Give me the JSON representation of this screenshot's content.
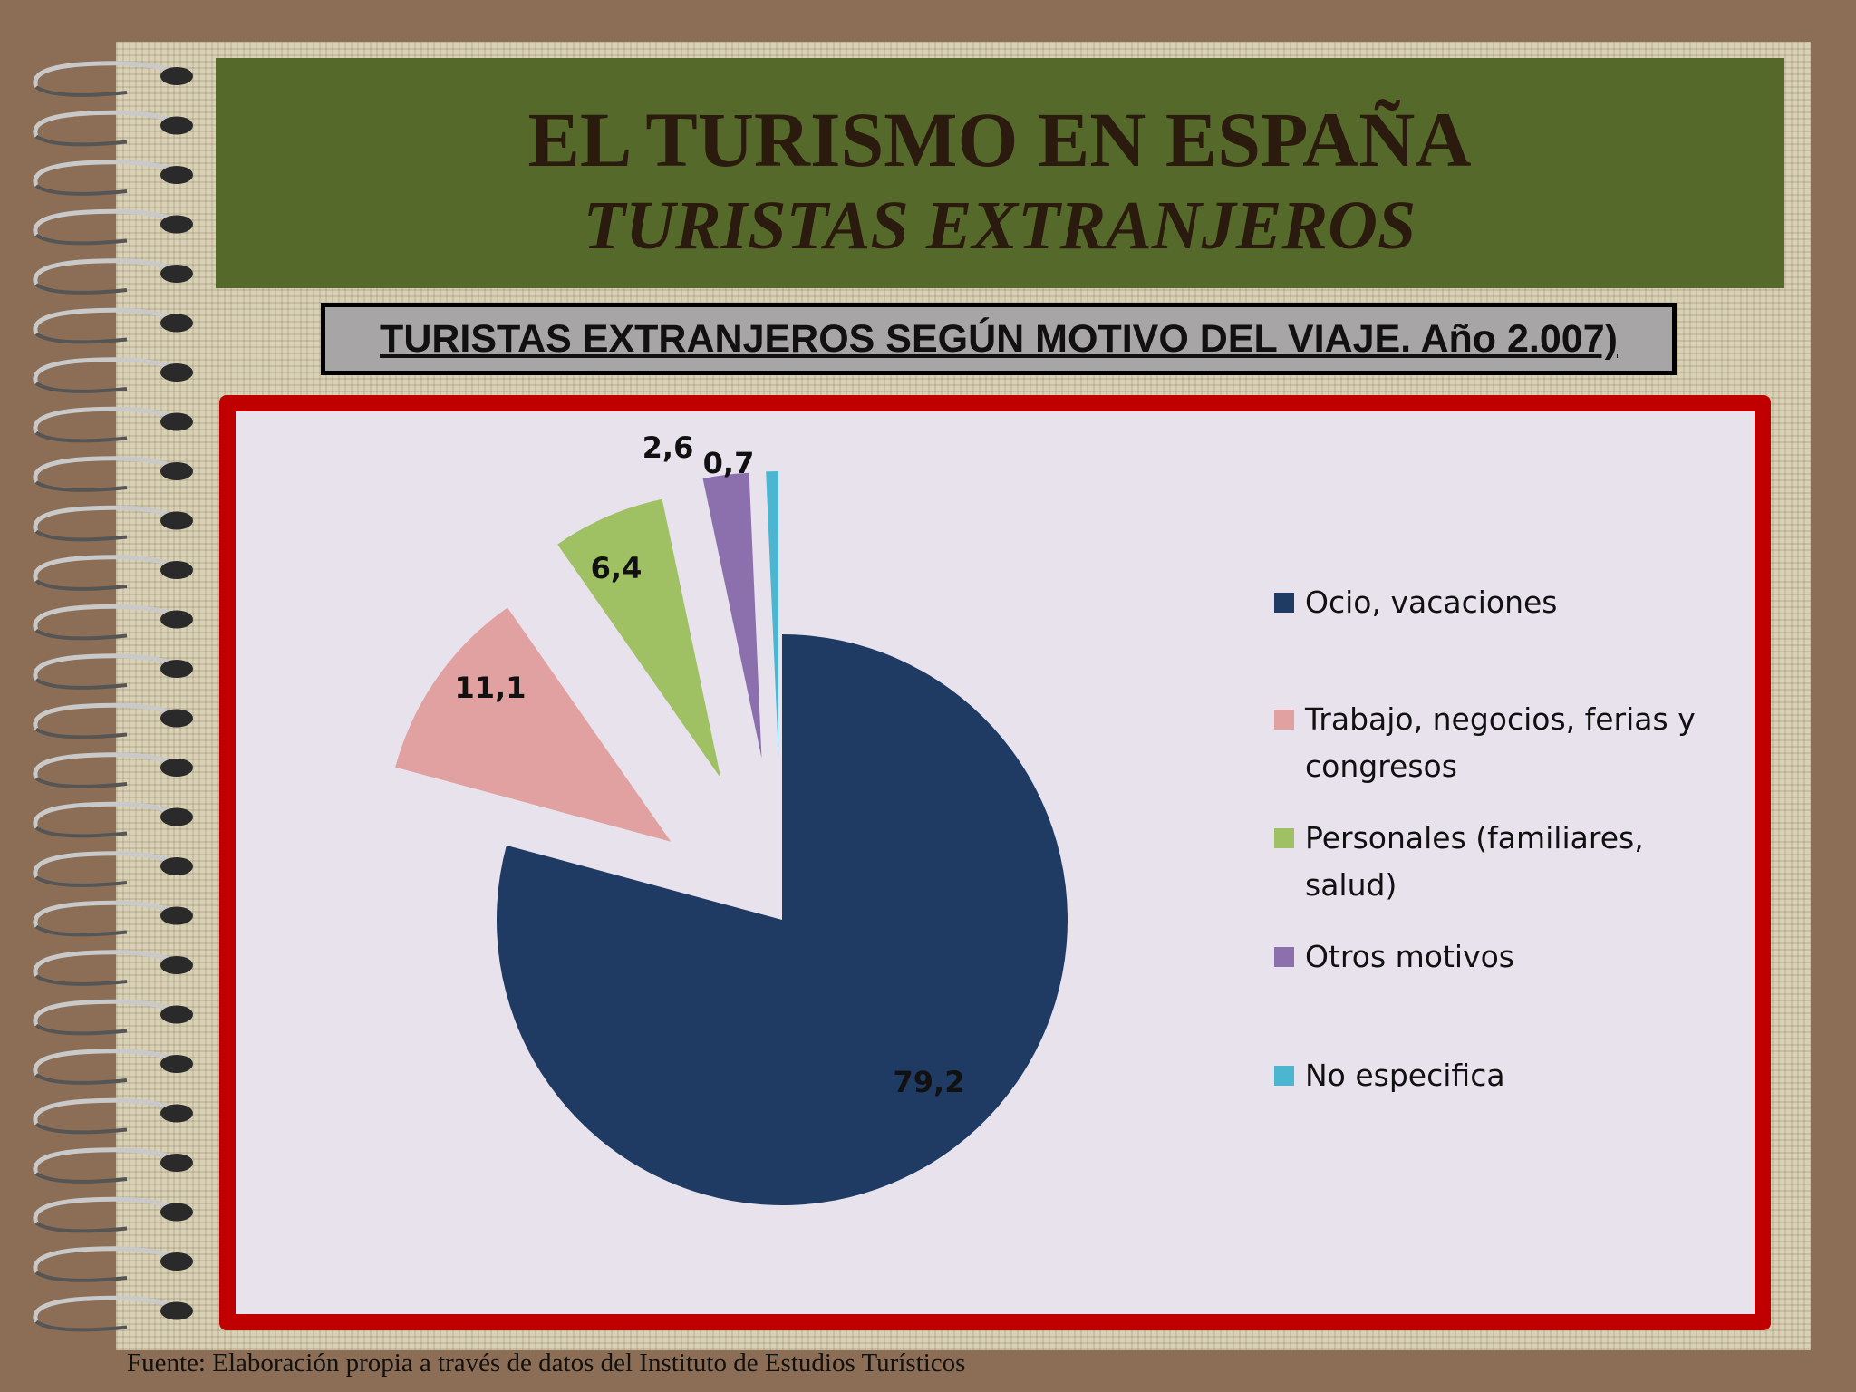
{
  "slide": {
    "title": "EL TURISMO EN ESPAÑA",
    "subtitle": "TURISTAS EXTRANJEROS",
    "chart_heading": "TURISTAS EXTRANJEROS SEGÚN MOTIVO DEL VIAJE. Año 2.007)",
    "source": "Fuente: Elaboración propia a través de datos del Instituto de Estudios Turísticos"
  },
  "chart_data": {
    "type": "pie",
    "title": "",
    "categories": [
      "Ocio, vacaciones",
      "Trabajo, negocios, ferias y congresos",
      "Personales (familiares, salud)",
      "Otros motivos",
      "No especifica"
    ],
    "values": [
      79.2,
      11.1,
      6.4,
      2.6,
      0.7
    ],
    "labels": [
      "79,2",
      "11,1",
      "6,4",
      "2,6",
      "0,7"
    ],
    "legend_lines": [
      [
        "Ocio, vacaciones"
      ],
      [
        "Trabajo, negocios, ferias y",
        "congresos"
      ],
      [
        "Personales (familiares,",
        "salud)"
      ],
      [
        "Otros motivos"
      ],
      [
        "No especifica"
      ]
    ],
    "colors": [
      "#1f3b63",
      "#e0a1a0",
      "#9fc063",
      "#8c6fad",
      "#4cb5cf"
    ],
    "legend_position": "right",
    "exploded": true
  }
}
